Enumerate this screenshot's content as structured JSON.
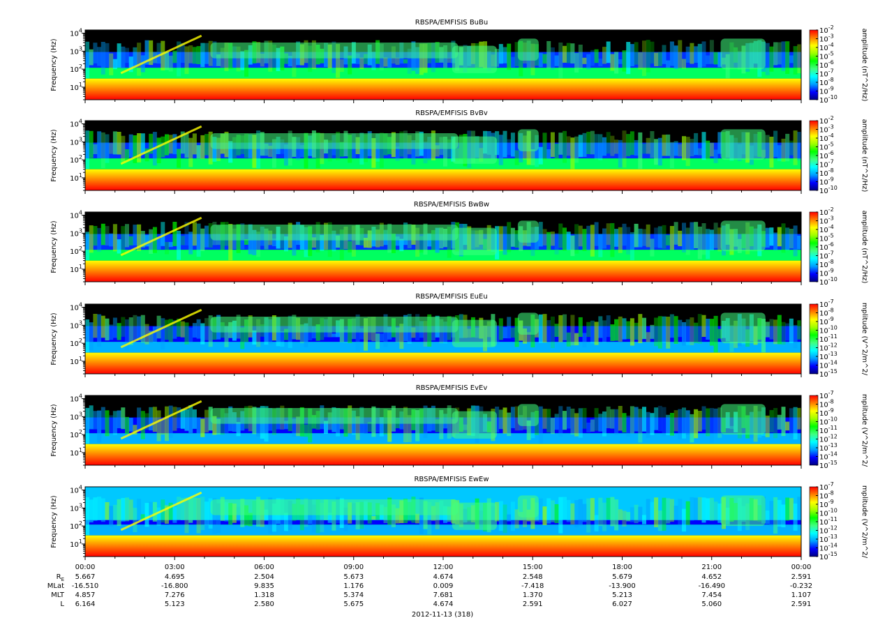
{
  "colors": {
    "colormap": [
      "#000080",
      "#0000ff",
      "#00a0ff",
      "#00ffff",
      "#40ff80",
      "#00ff00",
      "#a0ff00",
      "#ffff00",
      "#ff8000",
      "#ff0000"
    ],
    "no_data": "#000000"
  },
  "chart_data": {
    "type": "heatmap",
    "panels": [
      {
        "title": "RBSPA/EMFISIS  BuBu",
        "ylabel": "Frequency (Hz)",
        "yscale": "log",
        "ylim": [
          2,
          15000
        ],
        "yticks": [
          {
            "base": "10",
            "exp": "1"
          },
          {
            "base": "10",
            "exp": "2"
          },
          {
            "base": "10",
            "exp": "3"
          },
          {
            "base": "10",
            "exp": "4"
          }
        ],
        "colorbar": {
          "label": "amplitude (nT^2/Hz)",
          "scale": "log",
          "range": [
            1e-10,
            0.01
          ],
          "ticks": [
            {
              "base": "10",
              "exp": "-2"
            },
            {
              "base": "10",
              "exp": "-3"
            },
            {
              "base": "10",
              "exp": "-4"
            },
            {
              "base": "10",
              "exp": "-5"
            },
            {
              "base": "10",
              "exp": "-6"
            },
            {
              "base": "10",
              "exp": "-7"
            },
            {
              "base": "10",
              "exp": "-8"
            },
            {
              "base": "10",
              "exp": "-9"
            },
            {
              "base": "10",
              "exp": "-10"
            }
          ]
        }
      },
      {
        "title": "RBSPA/EMFISIS  BvBv",
        "ylabel": "Frequency (Hz)",
        "yscale": "log",
        "ylim": [
          2,
          15000
        ],
        "yticks": [
          {
            "base": "10",
            "exp": "1"
          },
          {
            "base": "10",
            "exp": "2"
          },
          {
            "base": "10",
            "exp": "3"
          },
          {
            "base": "10",
            "exp": "4"
          }
        ],
        "colorbar": {
          "label": "amplitude (nT^2/Hz)",
          "scale": "log",
          "range": [
            1e-10,
            0.01
          ],
          "ticks": [
            {
              "base": "10",
              "exp": "-2"
            },
            {
              "base": "10",
              "exp": "-3"
            },
            {
              "base": "10",
              "exp": "-4"
            },
            {
              "base": "10",
              "exp": "-5"
            },
            {
              "base": "10",
              "exp": "-6"
            },
            {
              "base": "10",
              "exp": "-7"
            },
            {
              "base": "10",
              "exp": "-8"
            },
            {
              "base": "10",
              "exp": "-9"
            },
            {
              "base": "10",
              "exp": "-10"
            }
          ]
        }
      },
      {
        "title": "RBSPA/EMFISIS  BwBw",
        "ylabel": "Frequency (Hz)",
        "yscale": "log",
        "ylim": [
          2,
          15000
        ],
        "yticks": [
          {
            "base": "10",
            "exp": "1"
          },
          {
            "base": "10",
            "exp": "2"
          },
          {
            "base": "10",
            "exp": "3"
          },
          {
            "base": "10",
            "exp": "4"
          }
        ],
        "colorbar": {
          "label": "amplitude (nT^2/Hz)",
          "scale": "log",
          "range": [
            1e-10,
            0.01
          ],
          "ticks": [
            {
              "base": "10",
              "exp": "-2"
            },
            {
              "base": "10",
              "exp": "-3"
            },
            {
              "base": "10",
              "exp": "-4"
            },
            {
              "base": "10",
              "exp": "-5"
            },
            {
              "base": "10",
              "exp": "-6"
            },
            {
              "base": "10",
              "exp": "-7"
            },
            {
              "base": "10",
              "exp": "-8"
            },
            {
              "base": "10",
              "exp": "-9"
            },
            {
              "base": "10",
              "exp": "-10"
            }
          ]
        }
      },
      {
        "title": "RBSPA/EMFISIS  EuEu",
        "ylabel": "Frequency (Hz)",
        "yscale": "log",
        "ylim": [
          2,
          15000
        ],
        "yticks": [
          {
            "base": "10",
            "exp": "1"
          },
          {
            "base": "10",
            "exp": "2"
          },
          {
            "base": "10",
            "exp": "3"
          },
          {
            "base": "10",
            "exp": "4"
          }
        ],
        "colorbar": {
          "label": "mplitude (V^2/m^2/",
          "scale": "log",
          "range": [
            1e-15,
            1e-07
          ],
          "ticks": [
            {
              "base": "10",
              "exp": "-7"
            },
            {
              "base": "10",
              "exp": "-8"
            },
            {
              "base": "10",
              "exp": "-9"
            },
            {
              "base": "10",
              "exp": "-10"
            },
            {
              "base": "10",
              "exp": "-11"
            },
            {
              "base": "10",
              "exp": "-12"
            },
            {
              "base": "10",
              "exp": "-13"
            },
            {
              "base": "10",
              "exp": "-14"
            },
            {
              "base": "10",
              "exp": "-15"
            }
          ]
        }
      },
      {
        "title": "RBSPA/EMFISIS  EvEv",
        "ylabel": "Frequency (Hz)",
        "yscale": "log",
        "ylim": [
          2,
          15000
        ],
        "yticks": [
          {
            "base": "10",
            "exp": "1"
          },
          {
            "base": "10",
            "exp": "2"
          },
          {
            "base": "10",
            "exp": "3"
          },
          {
            "base": "10",
            "exp": "4"
          }
        ],
        "colorbar": {
          "label": "mplitude (V^2/m^2/",
          "scale": "log",
          "range": [
            1e-15,
            1e-07
          ],
          "ticks": [
            {
              "base": "10",
              "exp": "-7"
            },
            {
              "base": "10",
              "exp": "-8"
            },
            {
              "base": "10",
              "exp": "-9"
            },
            {
              "base": "10",
              "exp": "-10"
            },
            {
              "base": "10",
              "exp": "-11"
            },
            {
              "base": "10",
              "exp": "-12"
            },
            {
              "base": "10",
              "exp": "-13"
            },
            {
              "base": "10",
              "exp": "-14"
            },
            {
              "base": "10",
              "exp": "-15"
            }
          ]
        }
      },
      {
        "title": "RBSPA/EMFISIS  EwEw",
        "ylabel": "Frequency (Hz)",
        "yscale": "log",
        "ylim": [
          2,
          15000
        ],
        "yticks": [
          {
            "base": "10",
            "exp": "1"
          },
          {
            "base": "10",
            "exp": "2"
          },
          {
            "base": "10",
            "exp": "3"
          },
          {
            "base": "10",
            "exp": "4"
          }
        ],
        "colorbar": {
          "label": "mplitude (V^2/m^2/",
          "scale": "log",
          "range": [
            1e-15,
            1e-07
          ],
          "ticks": [
            {
              "base": "10",
              "exp": "-7"
            },
            {
              "base": "10",
              "exp": "-8"
            },
            {
              "base": "10",
              "exp": "-9"
            },
            {
              "base": "10",
              "exp": "-10"
            },
            {
              "base": "10",
              "exp": "-11"
            },
            {
              "base": "10",
              "exp": "-12"
            },
            {
              "base": "10",
              "exp": "-13"
            },
            {
              "base": "10",
              "exp": "-14"
            },
            {
              "base": "10",
              "exp": "-15"
            }
          ]
        }
      }
    ],
    "x_hours": [
      0,
      3,
      6,
      9,
      12,
      15,
      18,
      21,
      24
    ],
    "x_tick_labels": [
      "00:00",
      "03:00",
      "06:00",
      "09:00",
      "12:00",
      "15:00",
      "18:00",
      "21:00",
      "00:00"
    ],
    "ephemeris": [
      {
        "label": "R",
        "subscript": "E",
        "values": [
          "5.667",
          "4.695",
          "2.504",
          "5.673",
          "4.674",
          "2.548",
          "5.679",
          "4.652",
          "2.591"
        ]
      },
      {
        "label": "MLat",
        "subscript": "",
        "values": [
          "-16.510",
          "-16.800",
          "9.835",
          "1.176",
          "0.009",
          "-7.418",
          "-13.900",
          "-16.490",
          "-0.232"
        ]
      },
      {
        "label": "MLT",
        "subscript": "",
        "values": [
          "4.857",
          "7.276",
          "1.318",
          "5.374",
          "7.681",
          "1.370",
          "5.213",
          "7.454",
          "1.107"
        ]
      },
      {
        "label": "L",
        "subscript": "",
        "values": [
          "6.164",
          "5.123",
          "2.580",
          "5.675",
          "4.674",
          "2.591",
          "6.027",
          "5.060",
          "2.591"
        ]
      }
    ],
    "date_label": "2012-11-13 (318)"
  }
}
